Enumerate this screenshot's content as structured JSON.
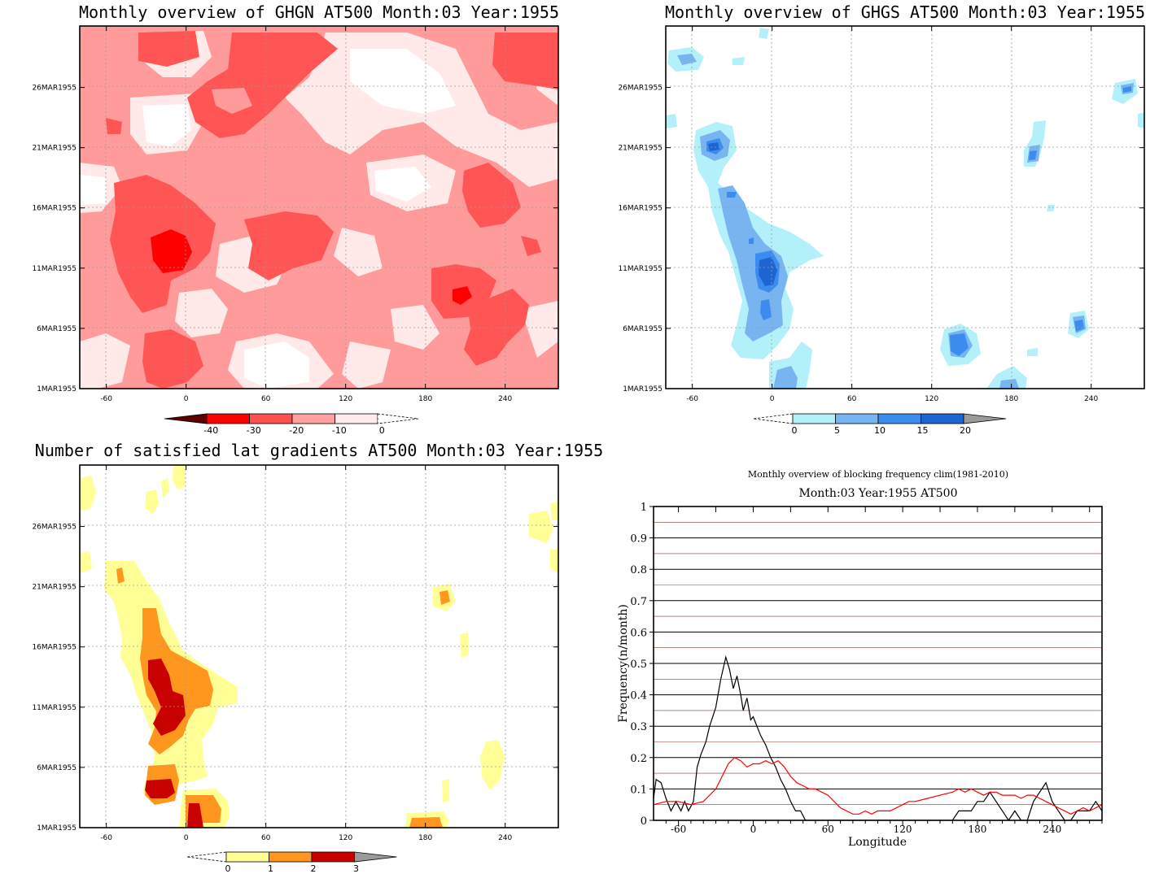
{
  "panels": [
    {
      "id": "ghgn",
      "title": "Monthly overview of GHGN AT500 Month:03 Year:1955",
      "x_ticks": [
        "-60",
        "0",
        "60",
        "120",
        "180",
        "240"
      ],
      "y_ticks": [
        "1MAR1955",
        "6MAR1955",
        "11MAR1955",
        "16MAR1955",
        "21MAR1955",
        "26MAR1955"
      ],
      "colorbar": {
        "labels": [
          "-40",
          "-30",
          "-20",
          "-10",
          "0"
        ],
        "colors": [
          "#5a0000",
          "#ff0000",
          "#ff5050",
          "#ffa0a0",
          "#ffebeb"
        ]
      }
    },
    {
      "id": "ghgs",
      "title": "Monthly overview of GHGS AT500 Month:03 Year:1955",
      "x_ticks": [
        "-60",
        "0",
        "60",
        "120",
        "180",
        "240"
      ],
      "y_ticks": [
        "1MAR1955",
        "6MAR1955",
        "11MAR1955",
        "16MAR1955",
        "21MAR1955",
        "26MAR1955"
      ],
      "colorbar": {
        "labels": [
          "0",
          "5",
          "10",
          "15",
          "20"
        ],
        "colors": [
          "#b4f0fa",
          "#78b4f0",
          "#3c8cf0",
          "#1e64d2",
          "#9a9a9a"
        ]
      }
    },
    {
      "id": "grad",
      "title": "Number of satisfied lat gradients AT500 Month:03 Year:1955",
      "x_ticks": [
        "-60",
        "0",
        "60",
        "120",
        "180",
        "240"
      ],
      "y_ticks": [
        "1MAR1955",
        "6MAR1955",
        "11MAR1955",
        "16MAR1955",
        "21MAR1955",
        "26MAR1955"
      ],
      "colorbar": {
        "labels": [
          "0",
          "1",
          "2",
          "3"
        ],
        "colors": [
          "#ffff96",
          "#ff961e",
          "#c80000",
          "#9a9a9a"
        ]
      }
    }
  ],
  "line_panel": {
    "title_line1": "Monthly overview of blocking frequency clim(1981-2010)",
    "title_line2": "Month:03 Year:1955  AT500"
  },
  "chart_data": [
    {
      "type": "heatmap",
      "title": "Monthly overview of GHGN AT500 Month:03 Year:1955",
      "x_range": [
        -80,
        280
      ],
      "y_range": [
        "1MAR1955",
        "31MAR1955"
      ],
      "levels": [
        -40,
        -30,
        -20,
        -10,
        0
      ],
      "note_blobs": [
        {
          "lon": -10,
          "day": 12,
          "value": -30
        },
        {
          "lon": 205,
          "day": 9,
          "value": -30
        },
        {
          "lon": 120,
          "day": 26,
          "value": -20
        },
        {
          "lon": 240,
          "day": 29,
          "value": -20
        }
      ]
    },
    {
      "type": "heatmap",
      "title": "Monthly overview of GHGS AT500 Month:03 Year:1955",
      "x_range": [
        -80,
        280
      ],
      "y_range": [
        "1MAR1955",
        "31MAR1955"
      ],
      "levels": [
        0,
        5,
        10,
        15,
        20
      ],
      "note_blobs": [
        {
          "lon": -40,
          "day": 21,
          "value": 15
        },
        {
          "lon": -5,
          "day": 11,
          "value": 20
        },
        {
          "lon": 140,
          "day": 4,
          "value": 10
        },
        {
          "lon": 230,
          "day": 6,
          "value": 10
        }
      ]
    },
    {
      "type": "heatmap",
      "title": "Number of satisfied lat gradients AT500 Month:03 Year:1955",
      "x_range": [
        -80,
        280
      ],
      "y_range": [
        "1MAR1955",
        "31MAR1955"
      ],
      "levels": [
        0,
        1,
        2,
        3
      ],
      "note_blobs": [
        {
          "lon": -15,
          "day": 11,
          "value": 3
        },
        {
          "lon": -20,
          "day": 4,
          "value": 3
        },
        {
          "lon": 8,
          "day": 2,
          "value": 3
        },
        {
          "lon": 195,
          "day": 20,
          "value": 2
        }
      ]
    },
    {
      "type": "line",
      "title": "Monthly overview of blocking frequency clim(1981-2010)",
      "subtitle": "Month:03 Year:1955  AT500",
      "xlabel": "Longitude",
      "ylabel": "Frequency(n/month)",
      "xlim": [
        -80,
        280
      ],
      "ylim": [
        0,
        1
      ],
      "x_ticks": [
        -60,
        0,
        60,
        120,
        180,
        240
      ],
      "y_ticks": [
        0,
        0.1,
        0.2,
        0.3,
        0.4,
        0.5,
        0.6,
        0.7,
        0.8,
        0.9,
        1
      ],
      "y_tick_labels": [
        "0",
        "0.1",
        "0.2",
        "0.3",
        "0.4",
        "0.5",
        "0.6",
        "0.7",
        "0.8",
        "0.9",
        "1"
      ],
      "series": [
        {
          "color": "#000000",
          "x": [
            -80,
            -78,
            -74,
            -70,
            -66,
            -62,
            -58,
            -55,
            -52,
            -48,
            -45,
            -42,
            -38,
            -35,
            -30,
            -26,
            -22,
            -19,
            -16,
            -13,
            -10,
            -8,
            -5,
            -2,
            0,
            3,
            6,
            10,
            14,
            18,
            22,
            26,
            30,
            34,
            38,
            42,
            46,
            50,
            60,
            80,
            100,
            120,
            140,
            160,
            165,
            170,
            175,
            180,
            185,
            190,
            195,
            200,
            205,
            210,
            215,
            220,
            225,
            230,
            235,
            240,
            245,
            250,
            255,
            260,
            265,
            270,
            275,
            280
          ],
          "y": [
            0.07,
            0.13,
            0.12,
            0.07,
            0.03,
            0.06,
            0.03,
            0.06,
            0.03,
            0.06,
            0.17,
            0.21,
            0.25,
            0.3,
            0.36,
            0.45,
            0.52,
            0.48,
            0.42,
            0.46,
            0.4,
            0.35,
            0.39,
            0.32,
            0.33,
            0.3,
            0.27,
            0.24,
            0.2,
            0.17,
            0.13,
            0.1,
            0.06,
            0.03,
            0.03,
            0,
            0,
            0,
            0,
            0,
            0,
            0,
            0,
            0,
            0.03,
            0.03,
            0.03,
            0.06,
            0.06,
            0.09,
            0.06,
            0.03,
            0,
            0.03,
            0,
            0,
            0.06,
            0.09,
            0.12,
            0.06,
            0.03,
            0,
            0,
            0.03,
            0.03,
            0.03,
            0.06,
            0.03
          ]
        },
        {
          "color": "#ff0000",
          "x": [
            -80,
            -70,
            -60,
            -50,
            -40,
            -30,
            -25,
            -20,
            -15,
            -10,
            -5,
            0,
            5,
            10,
            15,
            20,
            25,
            30,
            35,
            40,
            45,
            50,
            55,
            60,
            65,
            70,
            75,
            80,
            85,
            90,
            95,
            100,
            105,
            110,
            115,
            120,
            125,
            130,
            140,
            150,
            160,
            165,
            170,
            175,
            180,
            185,
            190,
            195,
            200,
            205,
            210,
            215,
            220,
            225,
            230,
            235,
            240,
            245,
            250,
            255,
            260,
            265,
            270,
            275,
            280
          ],
          "y": [
            0.05,
            0.06,
            0.06,
            0.05,
            0.06,
            0.1,
            0.14,
            0.18,
            0.2,
            0.19,
            0.17,
            0.18,
            0.18,
            0.19,
            0.18,
            0.19,
            0.17,
            0.14,
            0.12,
            0.11,
            0.1,
            0.1,
            0.09,
            0.08,
            0.06,
            0.04,
            0.03,
            0.02,
            0.02,
            0.03,
            0.02,
            0.03,
            0.03,
            0.03,
            0.04,
            0.05,
            0.06,
            0.06,
            0.07,
            0.08,
            0.09,
            0.1,
            0.09,
            0.1,
            0.09,
            0.08,
            0.09,
            0.09,
            0.08,
            0.08,
            0.08,
            0.07,
            0.08,
            0.08,
            0.07,
            0.06,
            0.05,
            0.04,
            0.03,
            0.02,
            0.03,
            0.04,
            0.03,
            0.04,
            0.05
          ]
        }
      ]
    }
  ]
}
